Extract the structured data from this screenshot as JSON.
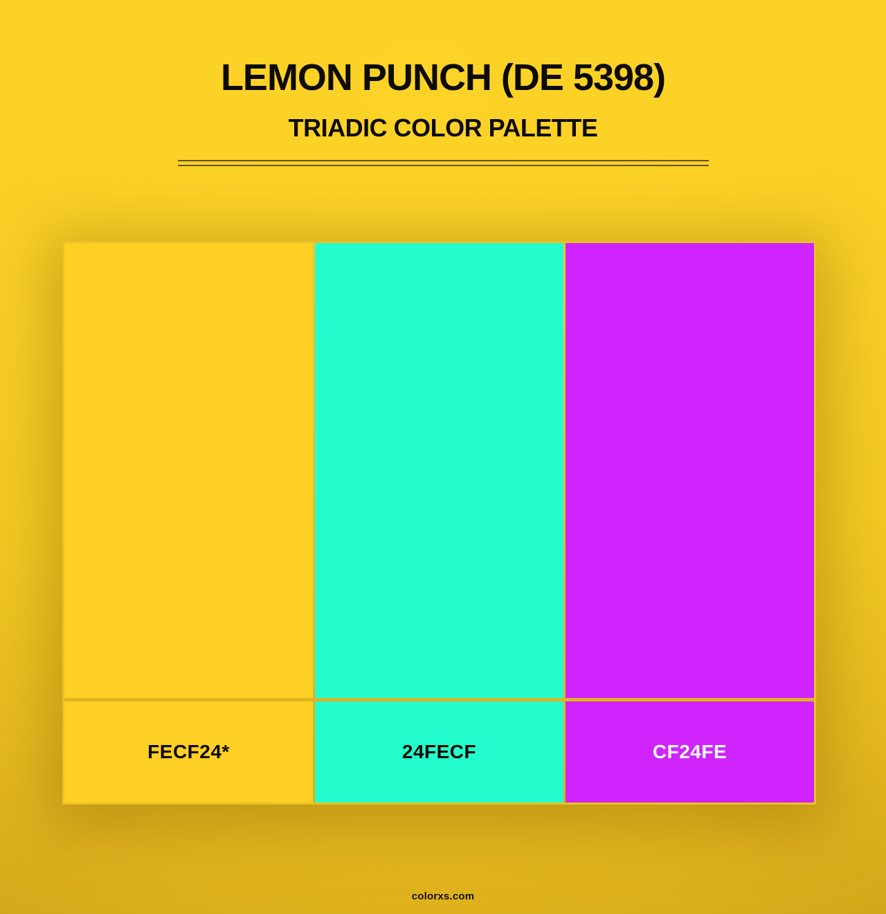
{
  "header": {
    "title": "LEMON PUNCH (DE 5398)",
    "subtitle": "TRIADIC COLOR PALETTE"
  },
  "palette": {
    "name": "Lemon Punch",
    "code": "DE 5398",
    "scheme": "Triadic",
    "swatches": [
      {
        "hex": "#FECF24",
        "label": "FECF24*",
        "text_color": "#0d0b02"
      },
      {
        "hex": "#24FECF",
        "label": "24FECF",
        "text_color": "#0d0b02"
      },
      {
        "hex": "#CF24FE",
        "label": "CF24FE",
        "text_color": "#ffffff"
      }
    ]
  },
  "footer": {
    "watermark": "colorxs.com"
  },
  "theme": {
    "background_top": "#FDD327",
    "background_bottom": "#C39717",
    "text_color": "#0d0b02",
    "divider_color": "#3E3208",
    "panel_frame": "#E9C128"
  }
}
